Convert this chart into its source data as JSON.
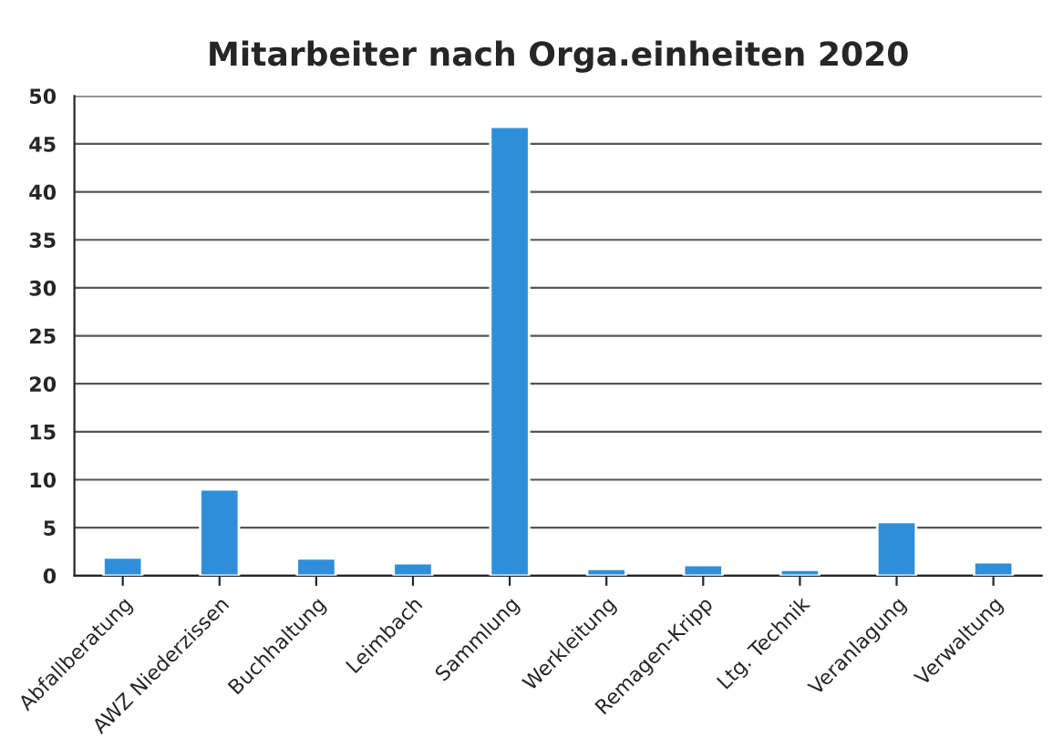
{
  "chart_data": {
    "type": "bar",
    "title": "Mitarbeiter nach Orga.einheiten 2020",
    "categories": [
      "Abfallberatung",
      "AWZ Niederzissen",
      "Buchhaltung",
      "Leimbach",
      "Sammlung",
      "Werkleitung",
      "Remagen-Kripp",
      "Ltg. Technik",
      "Veranlagung",
      "Verwaltung"
    ],
    "values": [
      1.9,
      9,
      1.8,
      1.3,
      46.8,
      0.7,
      1.1,
      0.6,
      5.6,
      1.4
    ],
    "color": "#2e8fd8",
    "ylim": [
      0,
      50
    ],
    "yticks": [
      0,
      5,
      10,
      15,
      20,
      25,
      30,
      35,
      40,
      45,
      50
    ],
    "grid": "y",
    "legend": false
  }
}
